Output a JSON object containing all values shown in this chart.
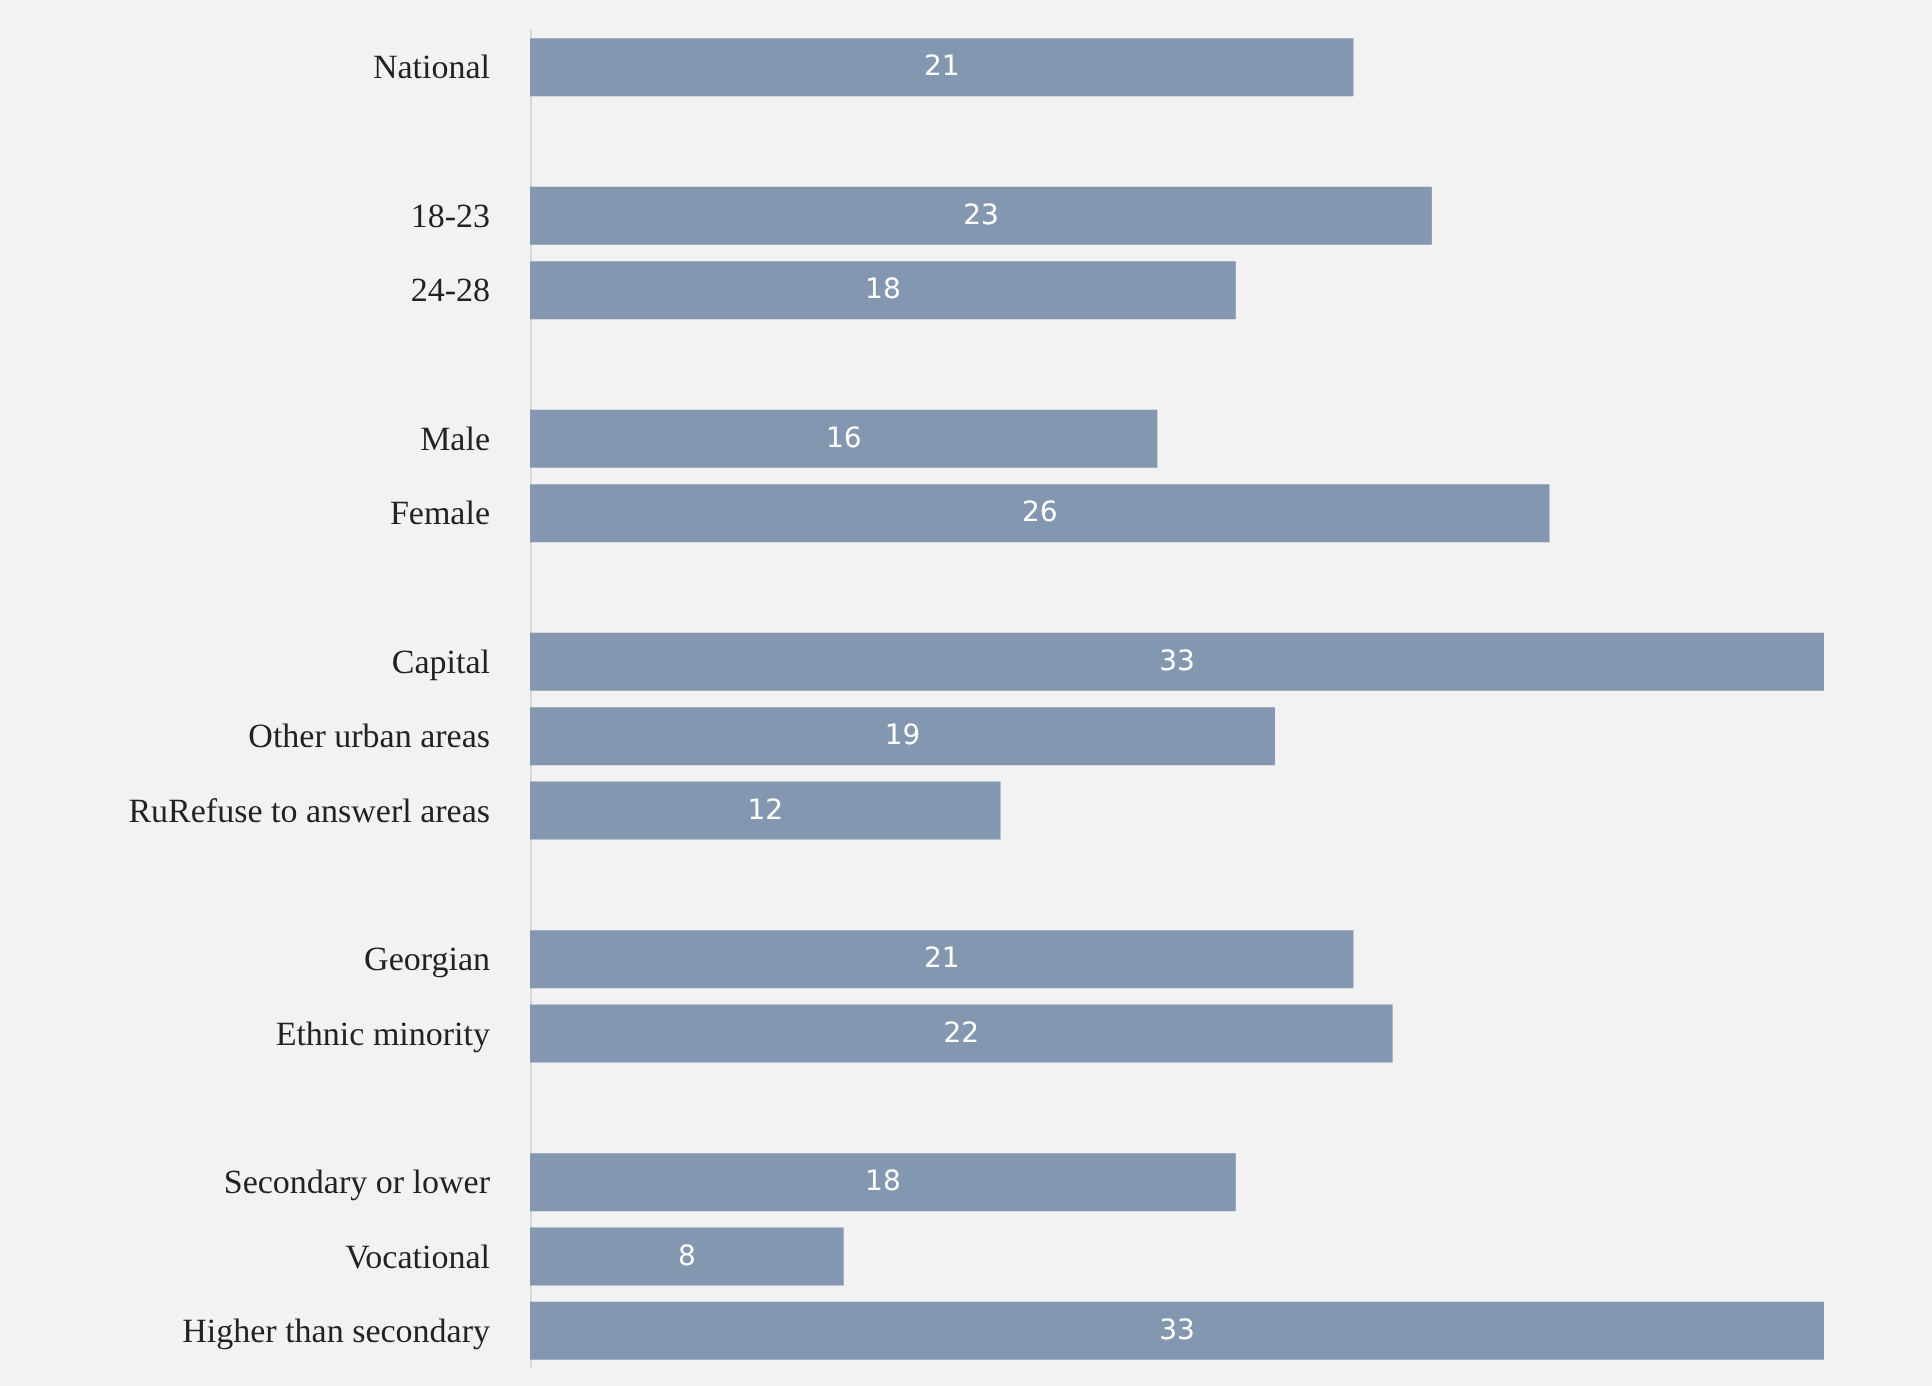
{
  "chart_data": {
    "type": "bar",
    "orientation": "horizontal",
    "categories": [
      "National",
      null,
      "18-23",
      "24-28",
      null,
      "Male",
      "Female",
      null,
      "Capital",
      "Other urban areas",
      "RuRefuse to answerl areas",
      null,
      "Georgian",
      "Ethnic minority",
      null,
      "Secondary or lower",
      "Vocational",
      "Higher than secondary"
    ],
    "values": [
      21,
      null,
      23,
      18,
      null,
      16,
      26,
      null,
      33,
      19,
      12,
      null,
      21,
      22,
      null,
      18,
      8,
      33
    ],
    "color": "#8497b0",
    "data_labels": true
  }
}
